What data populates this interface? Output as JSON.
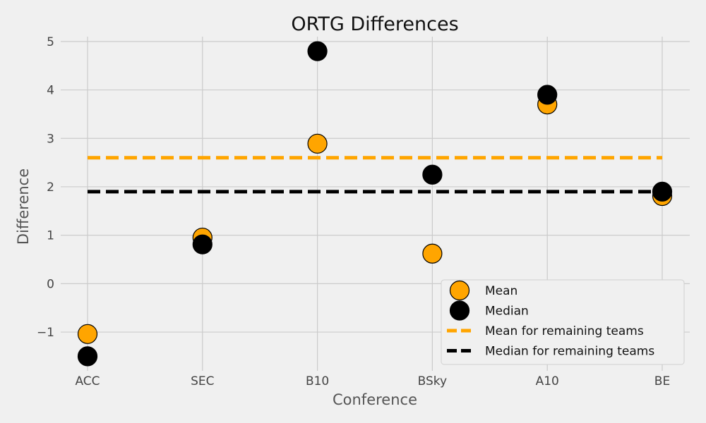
{
  "chart_data": {
    "type": "scatter",
    "title": "ORTG Differences",
    "xlabel": "Conference",
    "ylabel": "Difference",
    "categories": [
      "ACC",
      "SEC",
      "B10",
      "BSky",
      "A10",
      "BE"
    ],
    "ylim": [
      -1.8,
      5.1
    ],
    "yticks": [
      -1,
      0,
      1,
      2,
      3,
      4,
      5
    ],
    "ytick_labels": [
      "−1",
      "0",
      "1",
      "2",
      "3",
      "4",
      "5"
    ],
    "grid": true,
    "legend_position": "lower-right",
    "series": [
      {
        "name": "Mean",
        "kind": "points",
        "color": "#ffa500",
        "values": [
          -1.04,
          0.95,
          2.89,
          0.62,
          3.7,
          1.81
        ]
      },
      {
        "name": "Median",
        "kind": "points",
        "color": "#000000",
        "values": [
          -1.5,
          0.81,
          4.8,
          2.25,
          3.9,
          1.9
        ]
      },
      {
        "name": "Mean for remaining teams",
        "kind": "hline",
        "color": "#ffa500",
        "value": 2.6
      },
      {
        "name": "Median for remaining teams",
        "kind": "hline",
        "color": "#000000",
        "value": 1.9
      }
    ]
  }
}
